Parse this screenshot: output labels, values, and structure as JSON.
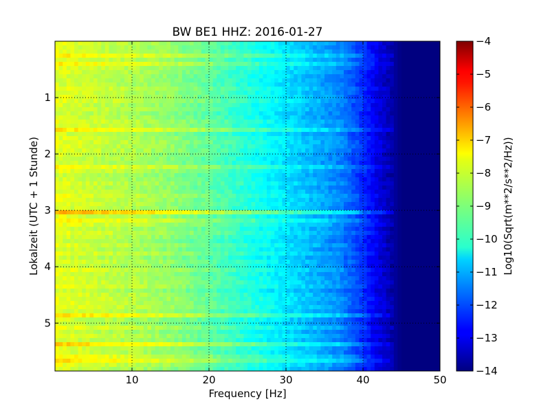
{
  "chart_data": {
    "type": "heatmap",
    "title": "BW BE1 HHZ: 2016-01-27",
    "xlabel": "Frequency [Hz]",
    "ylabel": "Lokalzeit (UTC + 1 Stunde)",
    "xlim": [
      0,
      50
    ],
    "ylim": [
      0,
      5.85
    ],
    "y_inverted": true,
    "x_ticks": [
      10,
      20,
      30,
      40,
      50
    ],
    "y_ticks": [
      1,
      2,
      3,
      4,
      5
    ],
    "grid": true,
    "colormap": "jet",
    "colorbar": {
      "label": "Log10(Sqrt(m**2/s**2/Hz))",
      "range": [
        -14,
        -4
      ],
      "ticks": [
        -4,
        -5,
        -6,
        -7,
        -8,
        -9,
        -10,
        -11,
        -12,
        -13,
        -14
      ]
    },
    "spectrum_profile": [
      {
        "f": 0,
        "v": -8.0
      },
      {
        "f": 5,
        "v": -8.3
      },
      {
        "f": 10,
        "v": -8.5
      },
      {
        "f": 15,
        "v": -8.8
      },
      {
        "f": 20,
        "v": -9.3
      },
      {
        "f": 25,
        "v": -9.9
      },
      {
        "f": 30,
        "v": -10.5
      },
      {
        "f": 33,
        "v": -10.9
      },
      {
        "f": 37,
        "v": -11.4
      },
      {
        "f": 40,
        "v": -12.3
      },
      {
        "f": 42,
        "v": -13.0
      },
      {
        "f": 45,
        "v": -14.0
      },
      {
        "f": 50,
        "v": -14.0
      }
    ],
    "bright_bands_hours": [
      0.27,
      0.42,
      1.55,
      2.22,
      3.02,
      3.18,
      4.87,
      5.37,
      5.62
    ],
    "strongest_band_hours": [
      3.02,
      5.37
    ]
  }
}
